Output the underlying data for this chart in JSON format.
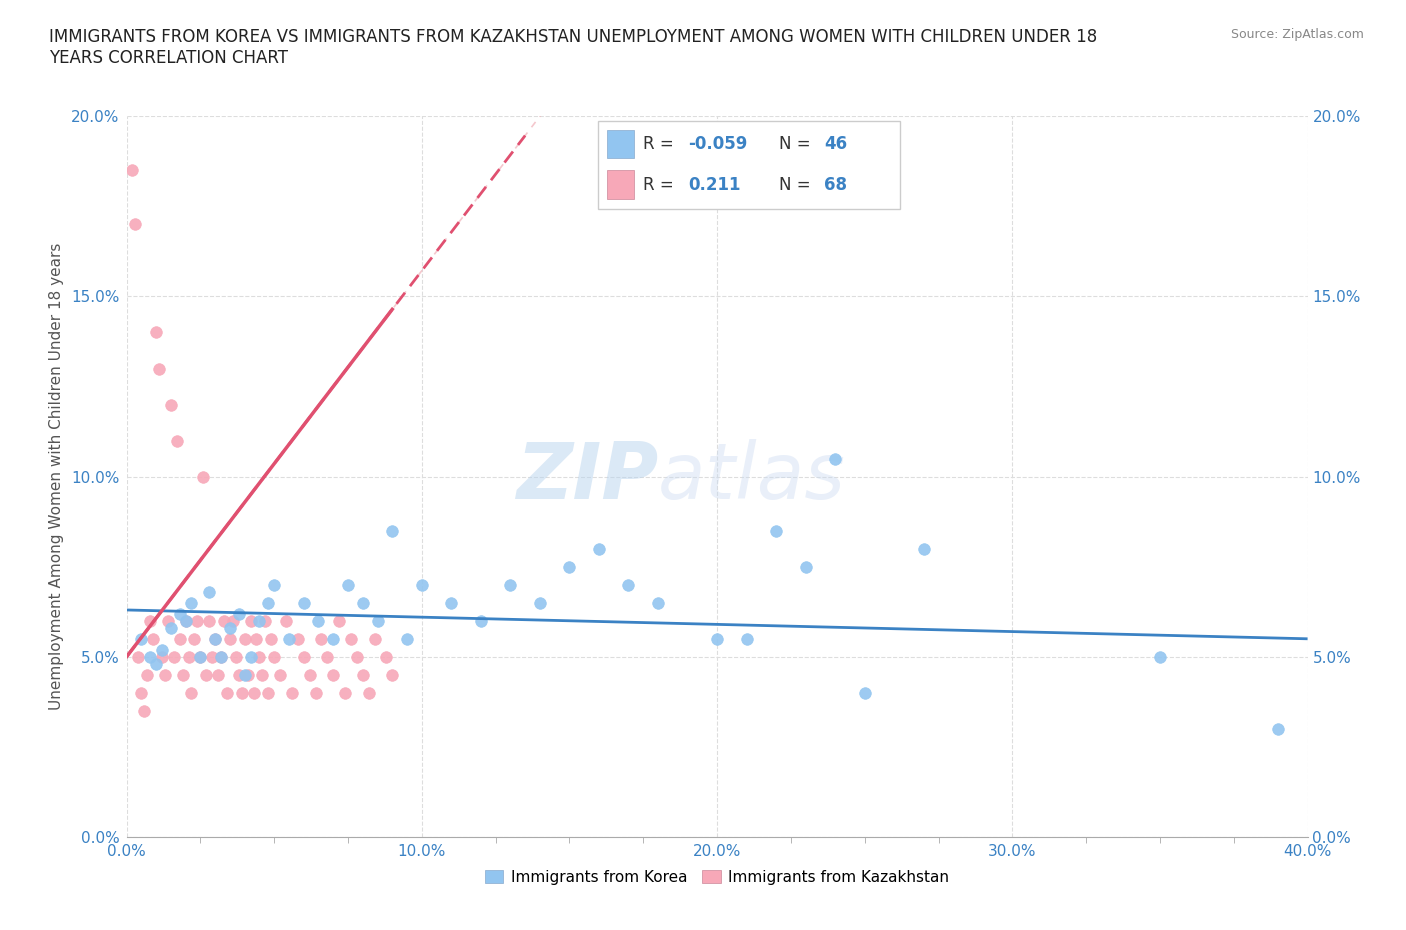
{
  "title": "IMMIGRANTS FROM KOREA VS IMMIGRANTS FROM KAZAKHSTAN UNEMPLOYMENT AMONG WOMEN WITH CHILDREN UNDER 18\nYEARS CORRELATION CHART",
  "source": "Source: ZipAtlas.com",
  "ylabel": "Unemployment Among Women with Children Under 18 years",
  "xlim": [
    0.0,
    0.4
  ],
  "ylim": [
    0.0,
    0.2
  ],
  "xticks_major": [
    0.0,
    0.1,
    0.2,
    0.3,
    0.4
  ],
  "xticks_minor": [
    0.0,
    0.025,
    0.05,
    0.075,
    0.1,
    0.125,
    0.15,
    0.175,
    0.2,
    0.225,
    0.25,
    0.275,
    0.3,
    0.325,
    0.35,
    0.375,
    0.4
  ],
  "yticks": [
    0.0,
    0.05,
    0.1,
    0.15,
    0.2
  ],
  "xticklabels": [
    "0.0%",
    "10.0%",
    "20.0%",
    "30.0%",
    "40.0%"
  ],
  "yticklabels": [
    "0.0%",
    "5.0%",
    "10.0%",
    "15.0%",
    "20.0%"
  ],
  "korea_color": "#92C5F0",
  "kazakhstan_color": "#F7A8B8",
  "korea_line_color": "#3B82C4",
  "kazakhstan_line_color": "#E05070",
  "korea_R": -0.059,
  "korea_N": 46,
  "kazakhstan_R": 0.211,
  "kazakhstan_N": 68,
  "legend_label_korea": "Immigrants from Korea",
  "legend_label_kazakhstan": "Immigrants from Kazakhstan",
  "watermark_zip": "ZIP",
  "watermark_atlas": "atlas",
  "background_color": "#FFFFFF",
  "grid_color": "#DDDDDD",
  "tick_color": "#3B82C4",
  "korea_x": [
    0.005,
    0.008,
    0.01,
    0.012,
    0.015,
    0.018,
    0.02,
    0.022,
    0.025,
    0.028,
    0.03,
    0.032,
    0.035,
    0.038,
    0.04,
    0.042,
    0.045,
    0.048,
    0.05,
    0.055,
    0.06,
    0.065,
    0.07,
    0.075,
    0.08,
    0.085,
    0.09,
    0.095,
    0.1,
    0.11,
    0.12,
    0.13,
    0.14,
    0.15,
    0.16,
    0.17,
    0.18,
    0.2,
    0.21,
    0.22,
    0.23,
    0.24,
    0.25,
    0.27,
    0.35,
    0.39
  ],
  "korea_y": [
    0.055,
    0.05,
    0.048,
    0.052,
    0.058,
    0.062,
    0.06,
    0.065,
    0.05,
    0.068,
    0.055,
    0.05,
    0.058,
    0.062,
    0.045,
    0.05,
    0.06,
    0.065,
    0.07,
    0.055,
    0.065,
    0.06,
    0.055,
    0.07,
    0.065,
    0.06,
    0.085,
    0.055,
    0.07,
    0.065,
    0.06,
    0.07,
    0.065,
    0.075,
    0.08,
    0.07,
    0.065,
    0.055,
    0.055,
    0.085,
    0.075,
    0.105,
    0.04,
    0.08,
    0.05,
    0.03
  ],
  "kazakhstan_x": [
    0.002,
    0.003,
    0.004,
    0.005,
    0.006,
    0.007,
    0.008,
    0.009,
    0.01,
    0.011,
    0.012,
    0.013,
    0.014,
    0.015,
    0.016,
    0.017,
    0.018,
    0.019,
    0.02,
    0.021,
    0.022,
    0.023,
    0.024,
    0.025,
    0.026,
    0.027,
    0.028,
    0.029,
    0.03,
    0.031,
    0.032,
    0.033,
    0.034,
    0.035,
    0.036,
    0.037,
    0.038,
    0.039,
    0.04,
    0.041,
    0.042,
    0.043,
    0.044,
    0.045,
    0.046,
    0.047,
    0.048,
    0.049,
    0.05,
    0.052,
    0.054,
    0.056,
    0.058,
    0.06,
    0.062,
    0.064,
    0.066,
    0.068,
    0.07,
    0.072,
    0.074,
    0.076,
    0.078,
    0.08,
    0.082,
    0.084,
    0.088,
    0.09
  ],
  "kazakhstan_y": [
    0.185,
    0.17,
    0.05,
    0.04,
    0.035,
    0.045,
    0.06,
    0.055,
    0.14,
    0.13,
    0.05,
    0.045,
    0.06,
    0.12,
    0.05,
    0.11,
    0.055,
    0.045,
    0.06,
    0.05,
    0.04,
    0.055,
    0.06,
    0.05,
    0.1,
    0.045,
    0.06,
    0.05,
    0.055,
    0.045,
    0.05,
    0.06,
    0.04,
    0.055,
    0.06,
    0.05,
    0.045,
    0.04,
    0.055,
    0.045,
    0.06,
    0.04,
    0.055,
    0.05,
    0.045,
    0.06,
    0.04,
    0.055,
    0.05,
    0.045,
    0.06,
    0.04,
    0.055,
    0.05,
    0.045,
    0.04,
    0.055,
    0.05,
    0.045,
    0.06,
    0.04,
    0.055,
    0.05,
    0.045,
    0.04,
    0.055,
    0.05,
    0.045
  ]
}
